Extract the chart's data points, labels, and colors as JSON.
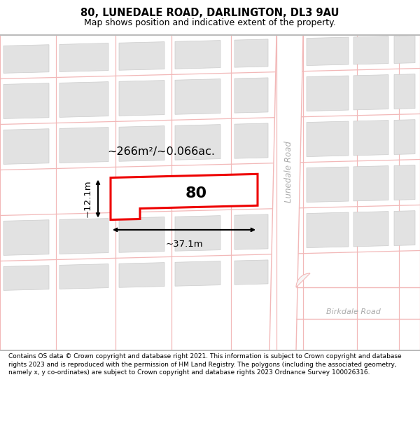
{
  "title": "80, LUNEDALE ROAD, DARLINGTON, DL3 9AU",
  "subtitle": "Map shows position and indicative extent of the property.",
  "footer": "Contains OS data © Crown copyright and database right 2021. This information is subject to Crown copyright and database rights 2023 and is reproduced with the permission of HM Land Registry. The polygons (including the associated geometry, namely x, y co-ordinates) are subject to Crown copyright and database rights 2023 Ordnance Survey 100026316.",
  "map_bg": "#f7f7f7",
  "road_color": "#f2b8b8",
  "block_fill": "#e2e2e2",
  "block_edge": "#cccccc",
  "white_fill": "#ffffff",
  "highlight_stroke": "#ee0000",
  "dim_color": "#111111",
  "road_label_color": "#aaaaaa",
  "label_area": "~266m²/~0.066ac.",
  "label_width": "~37.1m",
  "label_height": "~12.1m",
  "label_number": "80",
  "road_label_lunedale": "Lunedale Road",
  "road_label_birkdale": "Birkdale Road",
  "title_fontsize": 10.5,
  "subtitle_fontsize": 9,
  "footer_fontsize": 6.5
}
